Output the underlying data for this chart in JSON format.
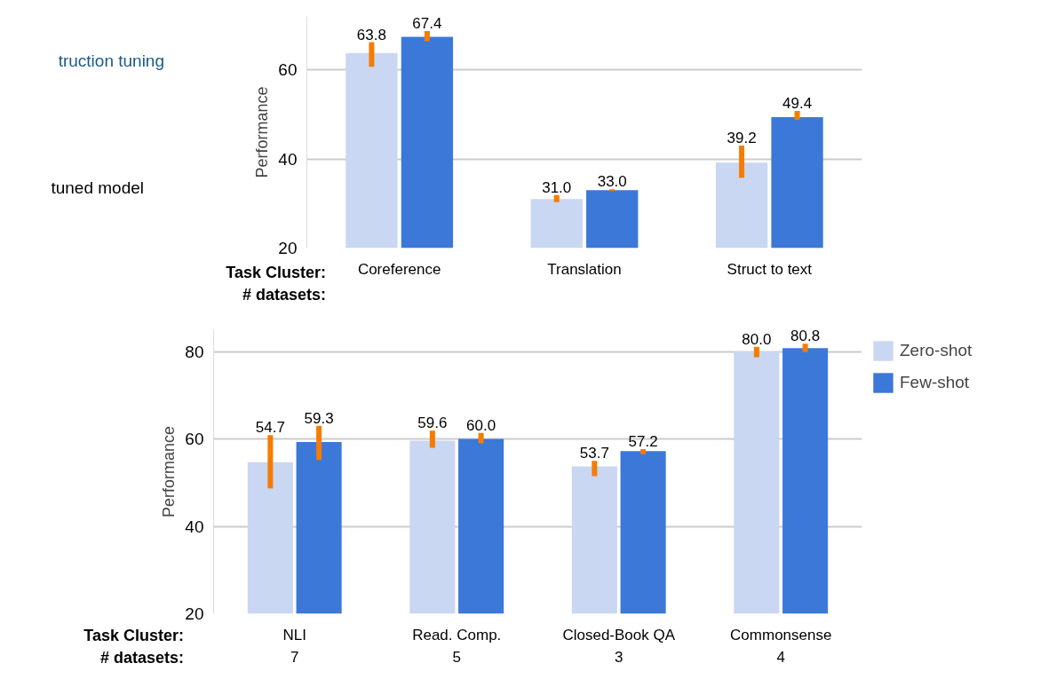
{
  "chart_data": [
    {
      "type": "bar",
      "ylabel": "Performance",
      "categories": [
        "Coreference",
        "Translation",
        "Struct to text"
      ],
      "series": [
        {
          "color": "#c9d7f2",
          "values": [
            63.8,
            31.0,
            39.2
          ],
          "value_labels": [
            "63.8",
            "31.0",
            "39.2"
          ],
          "errors": [
            [
              60.7,
              66.2
            ],
            [
              30.3,
              31.9
            ],
            [
              35.8,
              43.0
            ]
          ]
        },
        {
          "color": "#3c78d8",
          "values": [
            67.4,
            33.0,
            49.4
          ],
          "value_labels": [
            "67.4",
            "33.0",
            "49.4"
          ],
          "errors": [
            [
              66.4,
              68.7
            ],
            [
              32.8,
              33.2
            ],
            [
              48.8,
              50.8
            ]
          ]
        }
      ],
      "ylim": [
        20,
        72
      ],
      "yticks": [
        20,
        40,
        60
      ],
      "grid": "y",
      "annotations": [
        "truction tuning",
        "tuned model",
        "Task Cluster:",
        "# datasets:"
      ]
    },
    {
      "type": "bar",
      "ylabel": "Performance",
      "categories": [
        "NLI",
        "Read. Comp.",
        "Closed-Book QA",
        "Commonsense"
      ],
      "series": [
        {
          "name": "Zero-shot",
          "color": "#c9d7f2",
          "values": [
            54.7,
            59.6,
            53.7,
            80.0
          ],
          "value_labels": [
            "54.7",
            "59.6",
            "53.7",
            "80.0"
          ],
          "errors": [
            [
              48.7,
              60.9
            ],
            [
              58.0,
              61.9
            ],
            [
              51.5,
              55.0
            ],
            [
              78.7,
              81.1
            ]
          ]
        },
        {
          "name": "Few-shot",
          "color": "#3c78d8",
          "values": [
            59.3,
            60.0,
            57.2,
            80.8
          ],
          "value_labels": [
            "59.3",
            "60.0",
            "57.2",
            "80.8"
          ],
          "errors": [
            [
              55.2,
              63.0
            ],
            [
              59.0,
              61.4
            ],
            [
              56.5,
              57.7
            ],
            [
              79.9,
              81.8
            ]
          ]
        }
      ],
      "ylim": [
        20,
        85
      ],
      "yticks": [
        20,
        40,
        60,
        80
      ],
      "grid": "y",
      "legend": "right",
      "annotations": [
        "Task Cluster:",
        "# datasets:",
        "7",
        "5",
        "3",
        "4"
      ]
    }
  ]
}
